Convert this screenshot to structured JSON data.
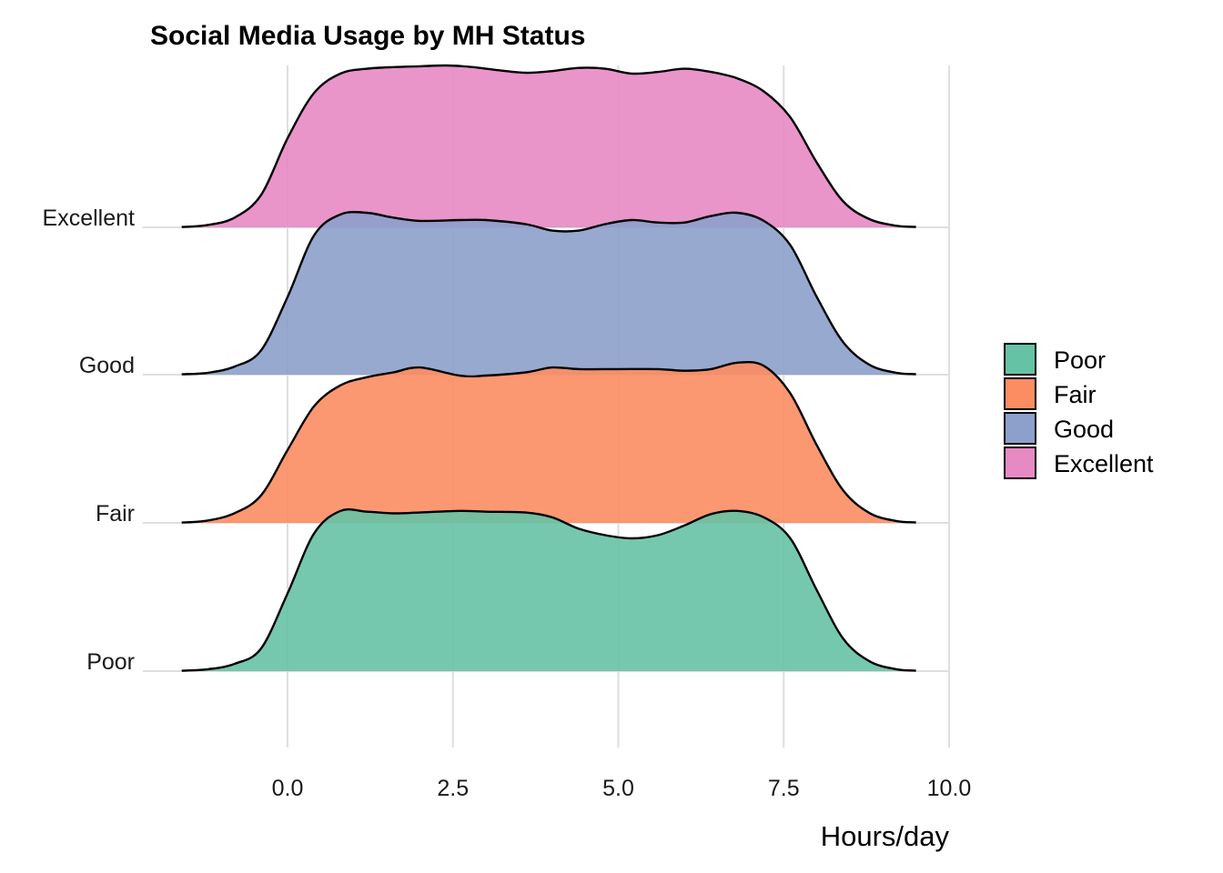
{
  "chart_data": {
    "type": "ridgeline",
    "title": "Social Media Usage by MH Status",
    "xlabel": "Hours/day",
    "ylabel": "",
    "xlim": [
      -1.6,
      9.5
    ],
    "x_ticks": [
      0.0,
      2.5,
      5.0,
      7.5,
      10.0
    ],
    "x_tick_labels": [
      "0.0",
      "2.5",
      "5.0",
      "7.5",
      "10.0"
    ],
    "categories": [
      "Poor",
      "Fair",
      "Good",
      "Excellent"
    ],
    "grid": true,
    "legend": {
      "position": "right",
      "entries": [
        "Poor",
        "Fair",
        "Good",
        "Excellent"
      ]
    },
    "series": [
      {
        "name": "Poor",
        "color": "#66c2a5",
        "x": [
          -1.6,
          -1.2,
          -0.8,
          -0.4,
          0,
          0.4,
          0.8,
          1.2,
          1.6,
          2,
          2.6,
          3,
          3.6,
          4,
          4.4,
          4.8,
          5.2,
          5.6,
          6,
          6.4,
          6.8,
          7.2,
          7.6,
          8,
          8.4,
          8.8,
          9.2,
          9.5
        ],
        "density": [
          0.002,
          0.012,
          0.045,
          0.14,
          0.48,
          0.85,
          0.99,
          0.985,
          0.975,
          0.98,
          0.99,
          0.985,
          0.98,
          0.95,
          0.88,
          0.84,
          0.82,
          0.84,
          0.9,
          0.97,
          0.99,
          0.95,
          0.82,
          0.5,
          0.2,
          0.06,
          0.012,
          0.003
        ]
      },
      {
        "name": "Fair",
        "color": "#fc8d62",
        "x": [
          -1.6,
          -1.2,
          -0.8,
          -0.4,
          0,
          0.4,
          0.8,
          1.2,
          1.6,
          2,
          2.6,
          3,
          3.6,
          4,
          4.4,
          5,
          5.6,
          6,
          6.4,
          6.8,
          7.2,
          7.6,
          8,
          8.4,
          8.8,
          9.2,
          9.5
        ],
        "density": [
          0.002,
          0.015,
          0.06,
          0.17,
          0.45,
          0.72,
          0.85,
          0.9,
          0.93,
          0.96,
          0.91,
          0.91,
          0.93,
          0.96,
          0.95,
          0.95,
          0.95,
          0.94,
          0.95,
          0.99,
          0.97,
          0.8,
          0.48,
          0.2,
          0.06,
          0.012,
          0.003
        ]
      },
      {
        "name": "Good",
        "color": "#8da0cb",
        "x": [
          -1.6,
          -1.2,
          -0.8,
          -0.4,
          0,
          0.4,
          0.8,
          1.2,
          1.6,
          2,
          2.6,
          3,
          3.6,
          4,
          4.4,
          4.8,
          5.2,
          5.6,
          6,
          6.4,
          6.8,
          7.2,
          7.6,
          8,
          8.4,
          8.8,
          9.2,
          9.5
        ],
        "density": [
          0.002,
          0.012,
          0.05,
          0.15,
          0.48,
          0.86,
          0.99,
          1.0,
          0.97,
          0.95,
          0.955,
          0.955,
          0.93,
          0.89,
          0.89,
          0.93,
          0.955,
          0.94,
          0.94,
          0.98,
          1.0,
          0.95,
          0.8,
          0.48,
          0.2,
          0.06,
          0.012,
          0.003
        ]
      },
      {
        "name": "Excellent",
        "color": "#e78ac3",
        "x": [
          -1.6,
          -1.2,
          -0.8,
          -0.4,
          0,
          0.4,
          0.8,
          1.2,
          1.6,
          2,
          2.4,
          2.8,
          3.2,
          3.6,
          4,
          4.4,
          4.8,
          5.2,
          5.6,
          6,
          6.4,
          6.8,
          7.2,
          7.6,
          8,
          8.4,
          8.8,
          9.2,
          9.5
        ],
        "density": [
          0.002,
          0.015,
          0.06,
          0.2,
          0.55,
          0.83,
          0.95,
          0.98,
          0.99,
          0.995,
          1.0,
          0.99,
          0.97,
          0.955,
          0.965,
          0.985,
          0.98,
          0.95,
          0.96,
          0.98,
          0.96,
          0.92,
          0.84,
          0.68,
          0.4,
          0.16,
          0.05,
          0.01,
          0.003
        ]
      }
    ]
  }
}
